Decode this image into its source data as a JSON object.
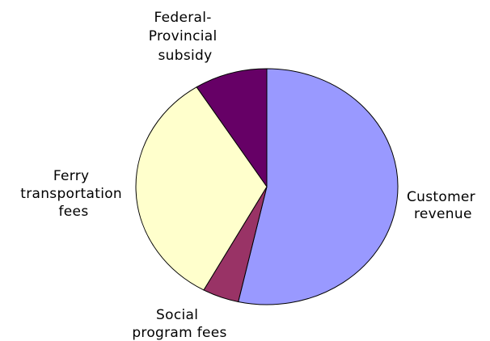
{
  "chart_data": {
    "type": "pie",
    "legend": "none",
    "slices": [
      {
        "label": "Customer revenue",
        "label_lines": [
          "Customer",
          "revenue"
        ],
        "value": 53.5,
        "color": "#9999ff"
      },
      {
        "label": "Social program fees",
        "label_lines": [
          "Social",
          "program fees"
        ],
        "value": 4.5,
        "color": "#993366"
      },
      {
        "label": "Ferry transportation fees",
        "label_lines": [
          "Ferry",
          "transportation",
          "fees"
        ],
        "value": 33.0,
        "color": "#ffffcc"
      },
      {
        "label": "Federal-Provincial subsidy",
        "label_lines": [
          "Federal-",
          "Provincial",
          "subsidy"
        ],
        "value": 9.0,
        "color": "#660066"
      }
    ]
  }
}
